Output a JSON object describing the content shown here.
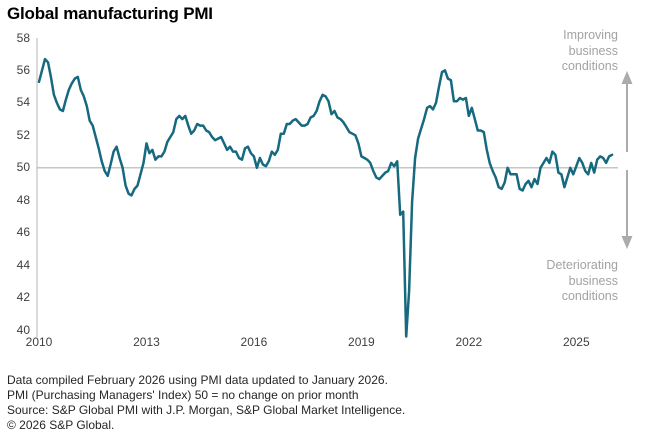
{
  "title": "Global manufacturing PMI",
  "annotations": {
    "improving": "Improving\nbusiness\nconditions",
    "deteriorating": "Deteriorating\nbusiness\nconditions"
  },
  "footer": {
    "lines": [
      "Data compiled February 2026 using PMI data updated to January 2026.",
      "PMI (Purchasing Managers' Index) 50 = no change on prior month",
      "Source: S&P Global PMI with J.P. Morgan, S&P Global Market Intelligence.",
      "© 2026 S&P Global."
    ]
  },
  "colors": {
    "line": "#16697f",
    "reference_line": "#b3b3b3",
    "axis": "#c6c6c6",
    "tick_text": "#3f3f3f",
    "annotation_text": "#a3a3a3",
    "arrow": "#ababab",
    "footer_text": "#262626",
    "title_text": "#000000"
  },
  "chart_data": {
    "type": "line",
    "title": "Global manufacturing PMI",
    "xlabel": "",
    "ylabel": "",
    "frequency": "monthly",
    "x_start": "2010-01",
    "x_end": "2026-01",
    "ylim": [
      40,
      58
    ],
    "yticks": [
      40,
      42,
      44,
      46,
      48,
      50,
      52,
      54,
      56,
      58
    ],
    "xticks": [
      2010,
      2013,
      2016,
      2019,
      2022,
      2025
    ],
    "reference_line": 50,
    "grid": false,
    "legend": "none",
    "series": [
      {
        "name": "Global manufacturing PMI",
        "values": [
          55.3,
          56.0,
          56.7,
          56.5,
          55.6,
          54.5,
          54.0,
          53.6,
          53.5,
          54.2,
          54.8,
          55.2,
          55.5,
          55.6,
          54.8,
          54.4,
          53.8,
          52.9,
          52.6,
          51.9,
          51.2,
          50.4,
          49.8,
          49.5,
          50.2,
          51.0,
          51.3,
          50.6,
          50.0,
          48.9,
          48.4,
          48.3,
          48.7,
          48.9,
          49.6,
          50.3,
          51.5,
          50.9,
          51.1,
          50.5,
          50.7,
          50.7,
          51.0,
          51.6,
          51.9,
          52.2,
          53.0,
          53.2,
          53.0,
          53.2,
          52.6,
          52.1,
          52.3,
          52.7,
          52.6,
          52.6,
          52.3,
          52.2,
          51.9,
          51.7,
          51.8,
          51.9,
          51.5,
          51.1,
          51.3,
          51.0,
          51.0,
          50.6,
          50.5,
          51.2,
          51.3,
          50.9,
          50.7,
          50.0,
          50.6,
          50.2,
          50.1,
          50.4,
          51.0,
          50.8,
          51.1,
          52.1,
          52.1,
          52.7,
          52.7,
          52.9,
          53.0,
          52.8,
          52.6,
          52.6,
          52.7,
          53.1,
          53.2,
          53.5,
          54.1,
          54.5,
          54.4,
          54.1,
          53.3,
          53.5,
          53.1,
          53.0,
          52.8,
          52.5,
          52.2,
          52.1,
          52.0,
          51.5,
          50.7,
          50.6,
          50.5,
          50.3,
          49.8,
          49.4,
          49.3,
          49.5,
          49.7,
          49.8,
          50.3,
          50.1,
          50.4,
          47.1,
          47.3,
          39.6,
          42.4,
          47.9,
          50.6,
          51.8,
          52.4,
          53.0,
          53.7,
          53.8,
          53.6,
          54.0,
          55.0,
          55.9,
          56.0,
          55.5,
          55.4,
          54.1,
          54.1,
          54.3,
          54.2,
          54.3,
          53.2,
          53.7,
          53.0,
          52.3,
          52.3,
          52.2,
          51.1,
          50.3,
          49.8,
          49.4,
          48.8,
          48.7,
          49.1,
          50.0,
          49.6,
          49.6,
          49.6,
          48.7,
          48.6,
          49.0,
          49.2,
          48.8,
          49.3,
          49.0,
          50.0,
          50.3,
          50.6,
          50.3,
          51.0,
          50.8,
          49.7,
          49.6,
          48.8,
          49.4,
          50.0,
          49.6,
          50.1,
          50.6,
          50.3,
          49.8,
          49.6,
          50.3,
          49.7,
          50.5,
          50.7,
          50.6,
          50.3,
          50.7,
          50.8
        ]
      }
    ]
  }
}
